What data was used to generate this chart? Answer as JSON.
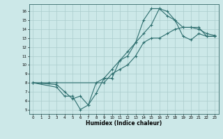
{
  "title": "",
  "xlabel": "Humidex (Indice chaleur)",
  "bg_color": "#cce8e8",
  "grid_color": "#aacccc",
  "line_color": "#2d6e6e",
  "xlim": [
    -0.5,
    23.5
  ],
  "ylim": [
    4.5,
    16.8
  ],
  "xticks": [
    0,
    1,
    2,
    3,
    4,
    5,
    6,
    7,
    8,
    9,
    10,
    11,
    12,
    13,
    14,
    15,
    16,
    17,
    18,
    19,
    20,
    21,
    22,
    23
  ],
  "yticks": [
    5,
    6,
    7,
    8,
    9,
    10,
    11,
    12,
    13,
    14,
    15,
    16
  ],
  "line1_x": [
    0,
    1,
    2,
    3,
    9,
    10,
    11,
    12,
    13,
    14,
    15,
    16,
    17,
    18,
    19,
    20,
    21,
    22,
    23
  ],
  "line1_y": [
    8,
    8,
    8,
    8,
    8,
    9,
    9.5,
    10,
    11,
    12.5,
    13,
    13,
    13.5,
    14,
    14.2,
    14.2,
    14.2,
    13.2,
    13.2
  ],
  "line2_x": [
    0,
    3,
    4,
    5,
    6,
    7,
    8,
    9,
    10,
    11,
    12,
    13,
    14,
    15,
    16,
    17,
    18,
    19,
    20,
    21,
    22,
    23
  ],
  "line2_y": [
    8,
    7.5,
    6.5,
    6.5,
    5,
    5.5,
    6.8,
    8.5,
    8.5,
    10.5,
    11,
    12.5,
    15,
    16.3,
    16.3,
    15.5,
    15,
    14.2,
    14.2,
    14,
    13.5,
    13.3
  ],
  "line3_x": [
    0,
    3,
    4,
    5,
    6,
    7,
    8,
    9,
    10,
    11,
    12,
    13,
    14,
    15,
    16,
    17,
    18,
    19,
    20,
    21,
    22,
    23
  ],
  "line3_y": [
    8,
    7.8,
    7.0,
    6.2,
    6.5,
    5.5,
    8.0,
    8.5,
    9.5,
    10.5,
    11.5,
    12.5,
    13.5,
    14.5,
    16.3,
    16.0,
    15.0,
    13.2,
    12.8,
    13.5,
    13.2,
    13.2
  ]
}
